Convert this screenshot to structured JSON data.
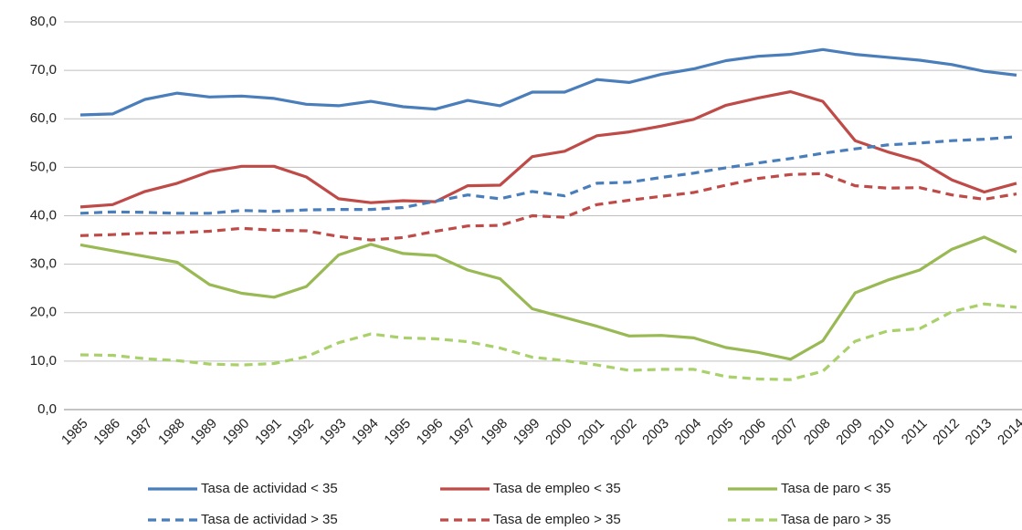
{
  "chart_data": {
    "type": "line",
    "categories": [
      "1985",
      "1986",
      "1987",
      "1988",
      "1989",
      "1990",
      "1991",
      "1992",
      "1993",
      "1994",
      "1995",
      "1996",
      "1997",
      "1998",
      "1999",
      "2000",
      "2001",
      "2002",
      "2003",
      "2004",
      "2005",
      "2006",
      "2007",
      "2008",
      "2009",
      "2010",
      "2011",
      "2012",
      "2013",
      "2014"
    ],
    "ylim": [
      0,
      80
    ],
    "yticks": [
      {
        "value": 0,
        "label": "0,0"
      },
      {
        "value": 10,
        "label": "10,0"
      },
      {
        "value": 20,
        "label": "20,0"
      },
      {
        "value": 30,
        "label": "30,0"
      },
      {
        "value": 40,
        "label": "40,0"
      },
      {
        "value": 50,
        "label": "50,0"
      },
      {
        "value": 60,
        "label": "60,0"
      },
      {
        "value": 70,
        "label": "70,0"
      },
      {
        "value": 80,
        "label": "80,0"
      }
    ],
    "grid": true,
    "legend": "bottom",
    "series": [
      {
        "name": "Tasa de actividad < 35",
        "color": "#4a7ebb",
        "dash": false,
        "values": [
          60.8,
          61,
          64,
          65.3,
          64.5,
          64.7,
          64.2,
          63,
          62.7,
          63.6,
          62.5,
          62,
          63.8,
          62.7,
          65.5,
          65.5,
          68.1,
          67.5,
          69.2,
          70.3,
          72,
          72.9,
          73.3,
          74.3,
          73.3,
          72.7,
          72.1,
          71.2,
          69.8,
          69
        ]
      },
      {
        "name": "Tasa de empleo < 35",
        "color": "#be4b48",
        "dash": false,
        "values": [
          41.8,
          42.3,
          45,
          46.7,
          49.1,
          50.2,
          50.2,
          48,
          43.5,
          42.7,
          43.1,
          42.9,
          46.2,
          46.3,
          52.2,
          53.3,
          56.5,
          57.3,
          58.5,
          59.9,
          62.8,
          64.3,
          65.6,
          63.6,
          55.5,
          53.2,
          51.3,
          47.4,
          44.9,
          46.7
        ]
      },
      {
        "name": "Tasa de paro < 35",
        "color": "#98b954",
        "dash": false,
        "values": [
          34,
          32.8,
          31.6,
          30.4,
          25.8,
          24,
          23.2,
          25.4,
          31.9,
          34.1,
          32.2,
          31.8,
          28.8,
          27,
          20.8,
          19,
          17.2,
          15.2,
          15.3,
          14.8,
          12.8,
          11.8,
          10.4,
          14.2,
          24.1,
          26.7,
          28.8,
          33.1,
          35.6,
          32.5
        ]
      },
      {
        "name": "Tasa de actividad > 35",
        "color": "#4a7ebb",
        "dash": true,
        "values": [
          40.5,
          40.8,
          40.7,
          40.5,
          40.5,
          41.1,
          40.9,
          41.2,
          41.3,
          41.3,
          41.7,
          43,
          44.3,
          43.5,
          45,
          44.1,
          46.7,
          46.9,
          47.9,
          48.8,
          49.9,
          50.9,
          51.8,
          52.9,
          53.8,
          54.6,
          55,
          55.5,
          55.8,
          56.3
        ]
      },
      {
        "name": "Tasa de empleo > 35",
        "color": "#be4b48",
        "dash": true,
        "values": [
          35.9,
          36.1,
          36.4,
          36.5,
          36.8,
          37.4,
          37,
          36.9,
          35.7,
          35,
          35.5,
          36.8,
          37.9,
          38,
          40,
          39.7,
          42.3,
          43.2,
          44,
          44.8,
          46.3,
          47.7,
          48.5,
          48.7,
          46.2,
          45.7,
          45.8,
          44.3,
          43.4,
          44.5
        ]
      },
      {
        "name": "Tasa de paro > 35",
        "color": "#a9d16b",
        "dash": true,
        "values": [
          11.3,
          11.2,
          10.5,
          10.1,
          9.4,
          9.2,
          9.5,
          10.9,
          13.8,
          15.6,
          14.8,
          14.6,
          14,
          12.7,
          10.8,
          10.1,
          9.2,
          8.1,
          8.3,
          8.3,
          6.8,
          6.3,
          6.2,
          7.9,
          14.1,
          16.2,
          16.7,
          20.2,
          21.8,
          21.1
        ]
      }
    ]
  }
}
